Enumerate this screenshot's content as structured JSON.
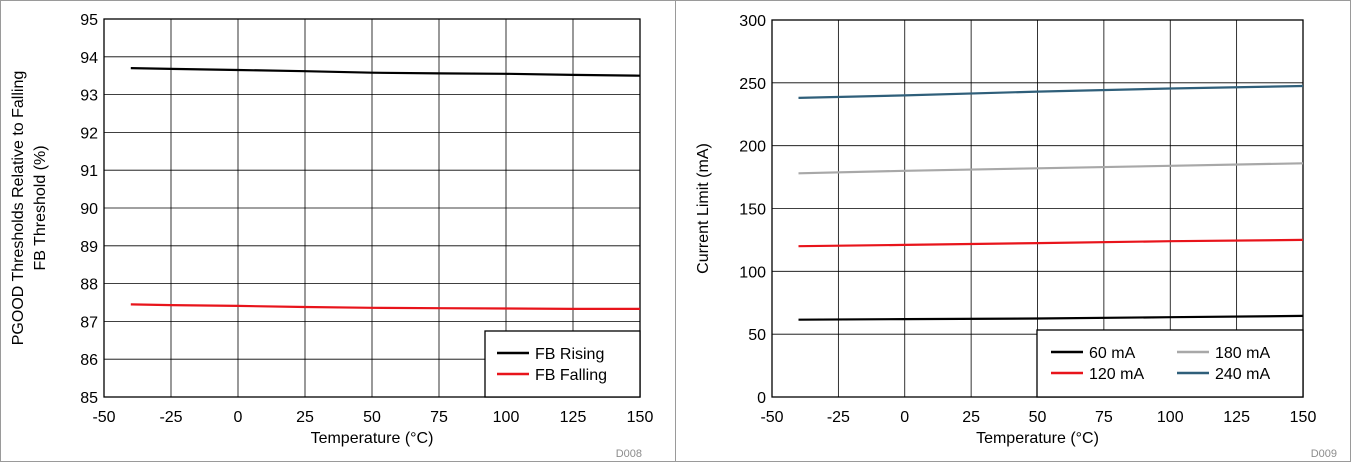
{
  "chart_data": [
    {
      "type": "line",
      "figure_id": "D008",
      "xlabel": "Temperature (°C)",
      "ylabel": [
        "PGOOD Thresholds Relative to Falling",
        "FB Threshold (%)"
      ],
      "xlim": [
        -50,
        150
      ],
      "ylim": [
        85,
        95
      ],
      "xticks": [
        -50,
        -25,
        0,
        25,
        50,
        75,
        100,
        125,
        150
      ],
      "yticks": [
        85,
        86,
        87,
        88,
        89,
        90,
        91,
        92,
        93,
        94,
        95
      ],
      "grid": true,
      "legend_position": "bottom-right",
      "legend_columns": 1,
      "series": [
        {
          "name": "FB Rising",
          "color": "#000000",
          "x": [
            -40,
            -25,
            0,
            25,
            50,
            75,
            100,
            125,
            150
          ],
          "y": [
            93.7,
            93.68,
            93.65,
            93.62,
            93.58,
            93.56,
            93.55,
            93.52,
            93.5
          ]
        },
        {
          "name": "FB Falling",
          "color": "#e8141b",
          "x": [
            -40,
            -25,
            0,
            25,
            50,
            75,
            100,
            125,
            150
          ],
          "y": [
            87.45,
            87.43,
            87.41,
            87.38,
            87.36,
            87.35,
            87.34,
            87.33,
            87.33
          ]
        }
      ]
    },
    {
      "type": "line",
      "figure_id": "D009",
      "xlabel": "Temperature (°C)",
      "ylabel": [
        "Current Limit (mA)"
      ],
      "xlim": [
        -50,
        150
      ],
      "ylim": [
        0,
        300
      ],
      "xticks": [
        -50,
        -25,
        0,
        25,
        50,
        75,
        100,
        125,
        150
      ],
      "yticks": [
        0,
        50,
        100,
        150,
        200,
        250,
        300
      ],
      "grid": true,
      "legend_position": "bottom-right",
      "legend_columns": 2,
      "series": [
        {
          "name": "60 mA",
          "color": "#000000",
          "x": [
            -40,
            0,
            50,
            100,
            150
          ],
          "y": [
            61.5,
            62,
            62.5,
            63.5,
            64.5
          ]
        },
        {
          "name": "120 mA",
          "color": "#e8141b",
          "x": [
            -40,
            0,
            50,
            100,
            150
          ],
          "y": [
            120,
            121,
            122.5,
            124,
            125
          ]
        },
        {
          "name": "180 mA",
          "color": "#a8a8a8",
          "x": [
            -40,
            0,
            50,
            100,
            150
          ],
          "y": [
            178,
            180,
            182,
            184,
            186
          ]
        },
        {
          "name": "240 mA",
          "color": "#2f5f7a",
          "x": [
            -40,
            0,
            50,
            100,
            150
          ],
          "y": [
            238,
            240,
            243,
            245.5,
            247.5
          ]
        }
      ]
    }
  ]
}
